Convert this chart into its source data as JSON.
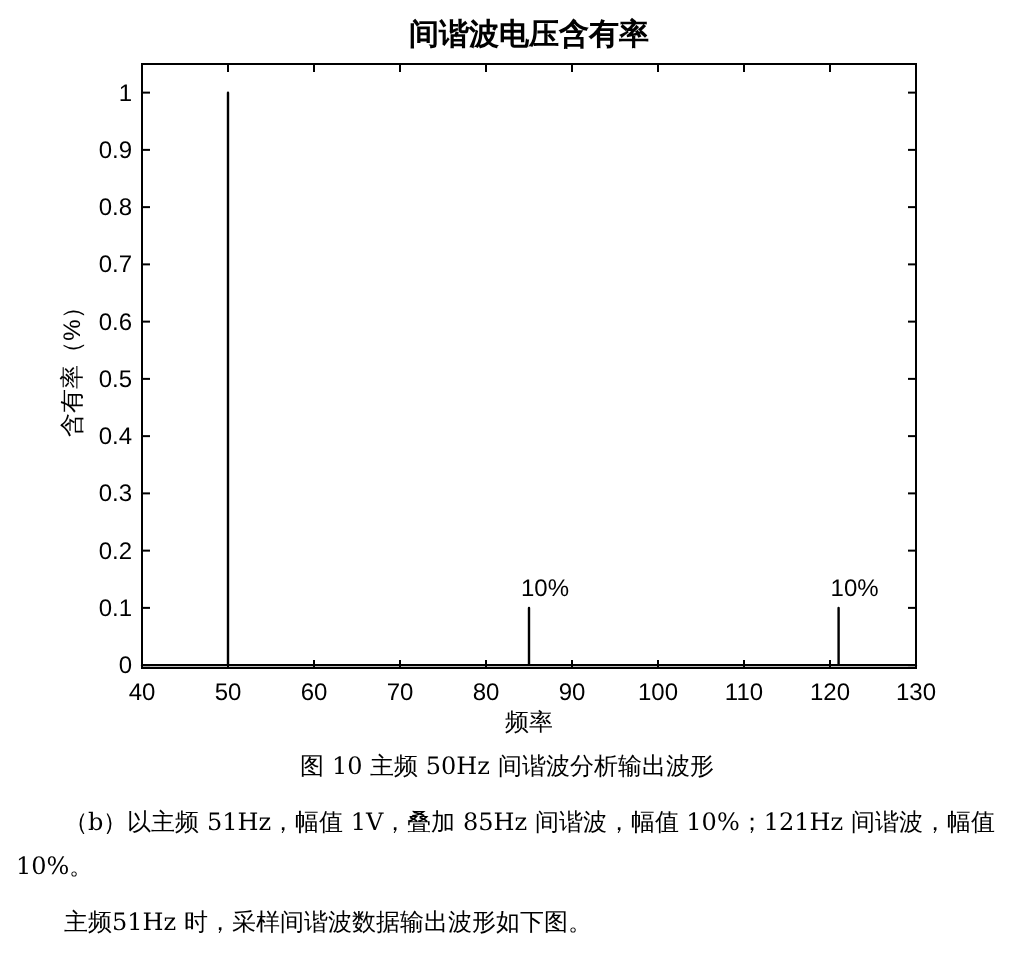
{
  "chart_data": {
    "type": "line",
    "title": "间谐波电压含有率",
    "xlabel": "频率",
    "ylabel": "含有率（%）",
    "x": [
      40,
      50,
      50,
      50,
      85,
      85,
      85,
      121,
      121,
      121,
      130
    ],
    "series": [
      {
        "color": "#000000",
        "values": [
          0,
          0,
          1,
          0,
          0,
          0.1,
          0,
          0,
          0.1,
          0,
          0
        ]
      }
    ],
    "xlim": [
      40,
      130
    ],
    "ylim": [
      -0.005,
      1.05
    ],
    "xticks": [
      40,
      50,
      60,
      70,
      80,
      90,
      100,
      110,
      120,
      130
    ],
    "yticks": [
      0,
      0.1,
      0.2,
      0.3,
      0.4,
      0.5,
      0.6,
      0.7,
      0.8,
      0.9,
      1
    ],
    "grid": false,
    "line_style": "solid",
    "annotations": [
      {
        "text": "10%",
        "x": 85,
        "y": 0.1
      },
      {
        "text": "10%",
        "x": 121,
        "y": 0.1
      },
      "图 10  主频 50Hz 间谐波分析输出波形",
      "（b）以主频 51Hz，幅值 1V，叠加 85Hz 间谐波，幅值 10%；121Hz 间谐波，幅值 10%。",
      "主频51Hz 时，采样间谐波数据输出波形如下图。"
    ]
  }
}
